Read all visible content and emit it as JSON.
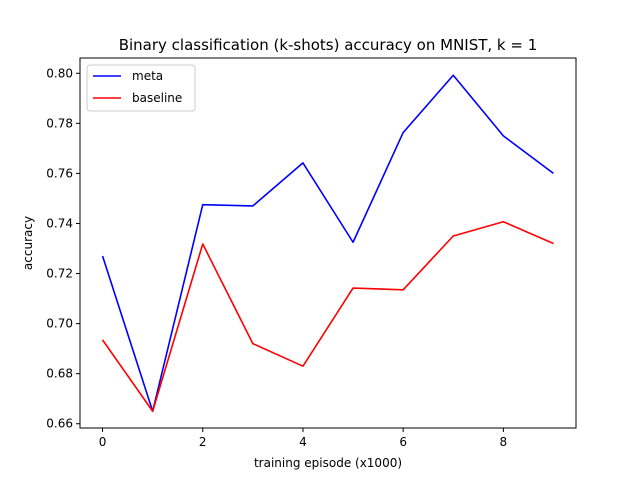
{
  "chart_data": {
    "type": "line",
    "title": "Binary classification (k-shots) accuracy on MNIST, k = 1",
    "xlabel": "training episode (x1000)",
    "ylabel": "accuracy",
    "x": [
      0,
      1,
      2,
      3,
      4,
      5,
      6,
      7,
      8,
      9
    ],
    "xlim": [
      -0.45,
      9.45
    ],
    "ylim": [
      0.6583,
      0.8061
    ],
    "xticks": [
      0,
      2,
      4,
      6,
      8
    ],
    "xtick_labels": [
      "0",
      "2",
      "4",
      "6",
      "8"
    ],
    "yticks": [
      0.66,
      0.68,
      0.7,
      0.72,
      0.74,
      0.76,
      0.78,
      0.8
    ],
    "ytick_labels": [
      "0.66",
      "0.68",
      "0.70",
      "0.72",
      "0.74",
      "0.76",
      "0.78",
      "0.80"
    ],
    "grid": false,
    "legend_position": "top-left",
    "series": [
      {
        "name": "meta",
        "color": "#0000ff",
        "values": [
          0.727,
          0.665,
          0.7475,
          0.747,
          0.7642,
          0.7325,
          0.7763,
          0.7992,
          0.775,
          0.76
        ]
      },
      {
        "name": "baseline",
        "color": "#ff0000",
        "values": [
          0.6935,
          0.665,
          0.7318,
          0.692,
          0.683,
          0.7142,
          0.7135,
          0.735,
          0.7407,
          0.732
        ]
      }
    ]
  }
}
